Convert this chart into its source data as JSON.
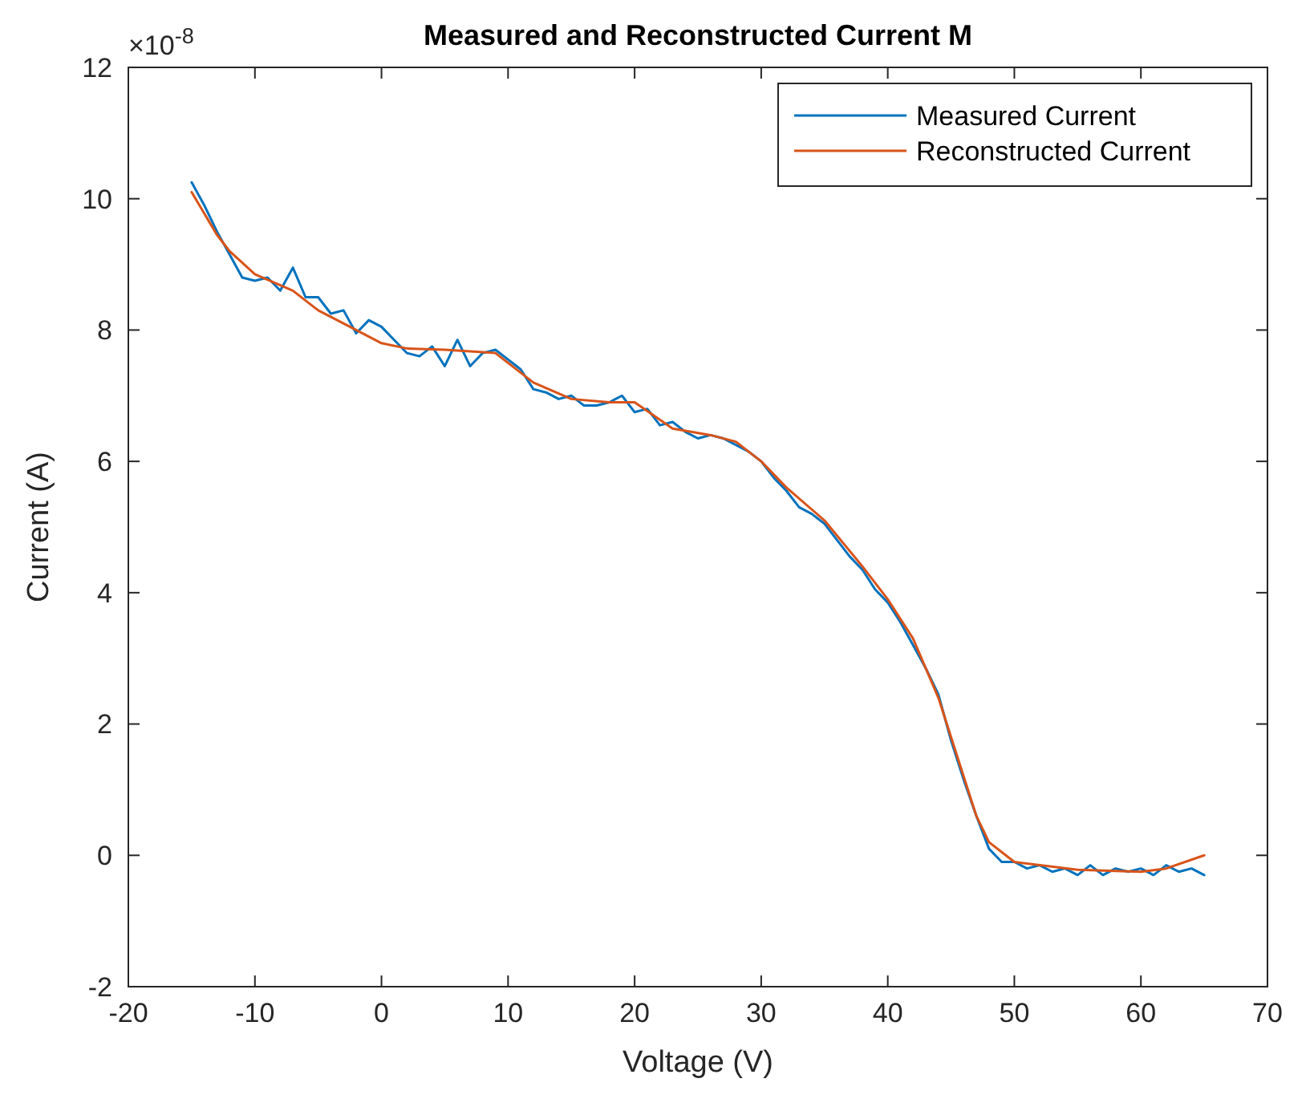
{
  "chart_data": {
    "type": "line",
    "title": "Measured and Reconstructed Current M",
    "xlabel": "Voltage (V)",
    "ylabel": "Current (A)",
    "annotations": [
      "×10$^{-8}$"
    ],
    "xlim": [
      -20,
      70
    ],
    "xticks": [
      -20,
      -10,
      0,
      10,
      20,
      30,
      40,
      50,
      60,
      70
    ],
    "ylim": [
      -2,
      12
    ],
    "yticks": [
      -2,
      0,
      2,
      4,
      6,
      8,
      10,
      12
    ],
    "grid": false,
    "legend": "top right",
    "line_style": "solid",
    "marker": "none",
    "series": [
      {
        "name": "Measured Current",
        "color": "#0072bd",
        "x": [
          -15,
          -14,
          -13,
          -12,
          -11,
          -10,
          -9,
          -8,
          -7,
          -6,
          -5,
          -4,
          -3,
          -2,
          -1,
          0,
          1,
          2,
          3,
          4,
          5,
          6,
          7,
          8,
          9,
          10,
          11,
          12,
          13,
          14,
          15,
          16,
          17,
          18,
          19,
          20,
          21,
          22,
          23,
          24,
          25,
          26,
          27,
          28,
          29,
          30,
          31,
          32,
          33,
          34,
          35,
          36,
          37,
          38,
          39,
          40,
          41,
          42,
          43,
          44,
          45,
          46,
          47,
          48,
          49,
          50,
          51,
          52,
          53,
          54,
          55,
          56,
          57,
          58,
          59,
          60,
          61,
          62,
          63,
          64,
          65
        ],
        "values": [
          10.25,
          9.9,
          9.5,
          9.15,
          8.8,
          8.75,
          8.8,
          8.6,
          8.95,
          8.5,
          8.5,
          8.25,
          8.3,
          7.95,
          8.15,
          8.05,
          7.85,
          7.65,
          7.6,
          7.75,
          7.45,
          7.85,
          7.45,
          7.65,
          7.7,
          7.55,
          7.4,
          7.1,
          7.05,
          6.95,
          7.0,
          6.85,
          6.85,
          6.9,
          7.0,
          6.75,
          6.8,
          6.55,
          6.6,
          6.45,
          6.35,
          6.4,
          6.35,
          6.25,
          6.15,
          6.0,
          5.75,
          5.55,
          5.3,
          5.2,
          5.05,
          4.8,
          4.55,
          4.35,
          4.05,
          3.85,
          3.55,
          3.2,
          2.85,
          2.45,
          1.75,
          1.15,
          0.6,
          0.1,
          -0.1,
          -0.1,
          -0.2,
          -0.15,
          -0.25,
          -0.2,
          -0.3,
          -0.15,
          -0.3,
          -0.2,
          -0.25,
          -0.2,
          -0.3,
          -0.15,
          -0.25,
          -0.2,
          -0.3
        ]
      },
      {
        "name": "Reconstructed Current",
        "color": "#d95319",
        "x": [
          -15,
          -13,
          -12,
          -10,
          -7,
          -5,
          -2,
          0,
          2,
          5,
          9,
          10,
          12,
          15,
          18,
          20,
          23,
          26,
          28,
          30,
          32,
          35,
          38,
          40,
          42,
          44,
          46,
          47,
          48,
          50,
          55,
          60,
          62,
          65
        ],
        "values": [
          10.1,
          9.45,
          9.2,
          8.85,
          8.6,
          8.3,
          8.0,
          7.8,
          7.72,
          7.7,
          7.65,
          7.5,
          7.2,
          6.95,
          6.9,
          6.9,
          6.5,
          6.4,
          6.3,
          6.0,
          5.6,
          5.1,
          4.4,
          3.9,
          3.3,
          2.4,
          1.2,
          0.6,
          0.2,
          -0.1,
          -0.22,
          -0.25,
          -0.2,
          0.0
        ]
      }
    ]
  }
}
